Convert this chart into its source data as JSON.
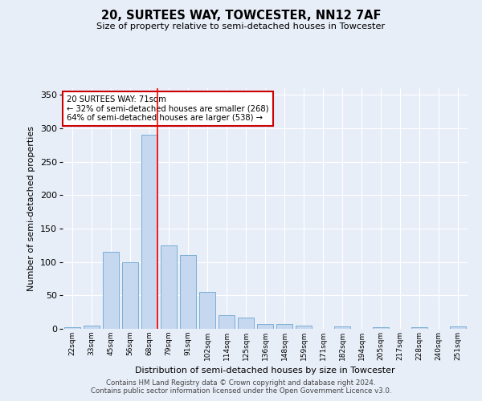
{
  "title": "20, SURTEES WAY, TOWCESTER, NN12 7AF",
  "subtitle": "Size of property relative to semi-detached houses in Towcester",
  "xlabel": "Distribution of semi-detached houses by size in Towcester",
  "ylabel": "Number of semi-detached properties",
  "categories": [
    "22sqm",
    "33sqm",
    "45sqm",
    "56sqm",
    "68sqm",
    "79sqm",
    "91sqm",
    "102sqm",
    "114sqm",
    "125sqm",
    "136sqm",
    "148sqm",
    "159sqm",
    "171sqm",
    "182sqm",
    "194sqm",
    "205sqm",
    "217sqm",
    "228sqm",
    "240sqm",
    "251sqm"
  ],
  "values": [
    3,
    5,
    115,
    100,
    290,
    125,
    110,
    55,
    20,
    17,
    7,
    7,
    5,
    0,
    4,
    0,
    3,
    0,
    3,
    0,
    4
  ],
  "bar_color": "#c5d8f0",
  "bar_edge_color": "#7aaed4",
  "property_label": "20 SURTEES WAY: 71sqm",
  "pct_smaller": 32,
  "count_smaller": 268,
  "pct_larger": 64,
  "count_larger": 538,
  "red_line_index": 4,
  "annotation_border_color": "#cc0000",
  "ylim": [
    0,
    360
  ],
  "yticks": [
    0,
    50,
    100,
    150,
    200,
    250,
    300,
    350
  ],
  "footer_line1": "Contains HM Land Registry data © Crown copyright and database right 2024.",
  "footer_line2": "Contains public sector information licensed under the Open Government Licence v3.0.",
  "background_color": "#e8eef8",
  "plot_bg_color": "#e8eef8"
}
